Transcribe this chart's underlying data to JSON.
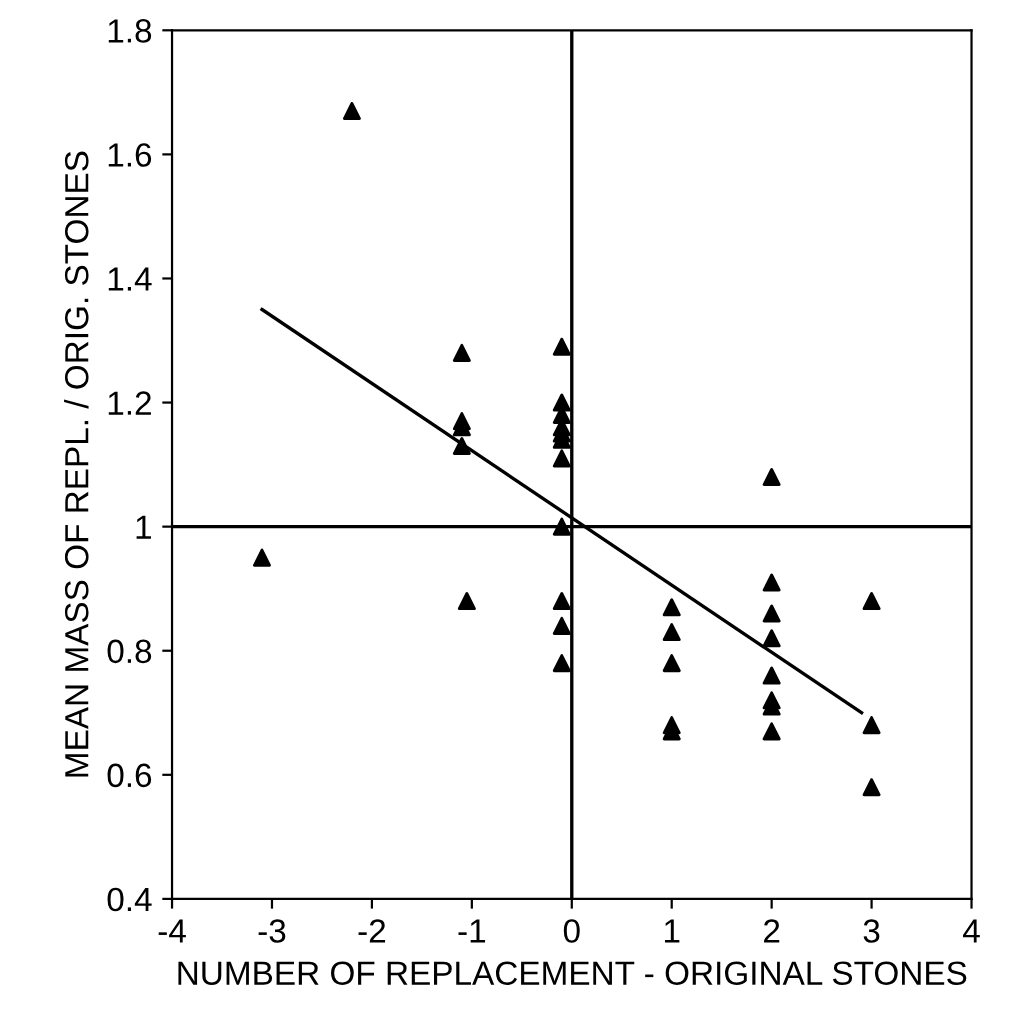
{
  "chart_data": {
    "type": "scatter",
    "xlabel": "NUMBER OF REPLACEMENT - ORIGINAL STONES",
    "ylabel": "MEAN MASS OF REPL. / ORIG. STONES",
    "xlim": [
      -4,
      4
    ],
    "ylim": [
      0.4,
      1.8
    ],
    "xticks": [
      -4,
      -3,
      -2,
      -1,
      0,
      1,
      2,
      3,
      4
    ],
    "yticks": [
      0.4,
      0.6,
      0.8,
      1,
      1.2,
      1.4,
      1.6,
      1.8
    ],
    "marker": "triangle",
    "grid": false,
    "legend": false,
    "ref_lines": [
      {
        "axis": "x",
        "value": 0,
        "color": "#000000"
      },
      {
        "axis": "y",
        "value": 1,
        "color": "#000000"
      }
    ],
    "series": [
      {
        "color": "#000000",
        "x": [
          -2.2,
          -3.1,
          -1.1,
          -1.1,
          -1.1,
          -1.1,
          -1.05,
          -0.1,
          -0.1,
          -0.1,
          -0.1,
          -0.1,
          -0.1,
          -0.1,
          -0.1,
          -0.1,
          -0.1,
          -0.1,
          1,
          1,
          1,
          1,
          1,
          2,
          2,
          2,
          2,
          2,
          2,
          2,
          2,
          3,
          3,
          3
        ],
        "values": [
          1.67,
          0.95,
          1.28,
          1.17,
          1.16,
          1.13,
          0.88,
          1.29,
          1.2,
          1.18,
          1.16,
          1.15,
          1.14,
          1.11,
          1.0,
          0.88,
          0.84,
          0.78,
          0.87,
          0.83,
          0.78,
          0.68,
          0.67,
          1.08,
          0.91,
          0.86,
          0.82,
          0.76,
          0.72,
          0.71,
          0.67,
          0.88,
          0.68,
          0.58
        ]
      },
      {
        "type": "line",
        "color": "#000000",
        "x": [
          -3.1,
          2.9
        ],
        "values": [
          1.35,
          0.7
        ],
        "marker": "none",
        "line_style": "solid"
      }
    ]
  }
}
